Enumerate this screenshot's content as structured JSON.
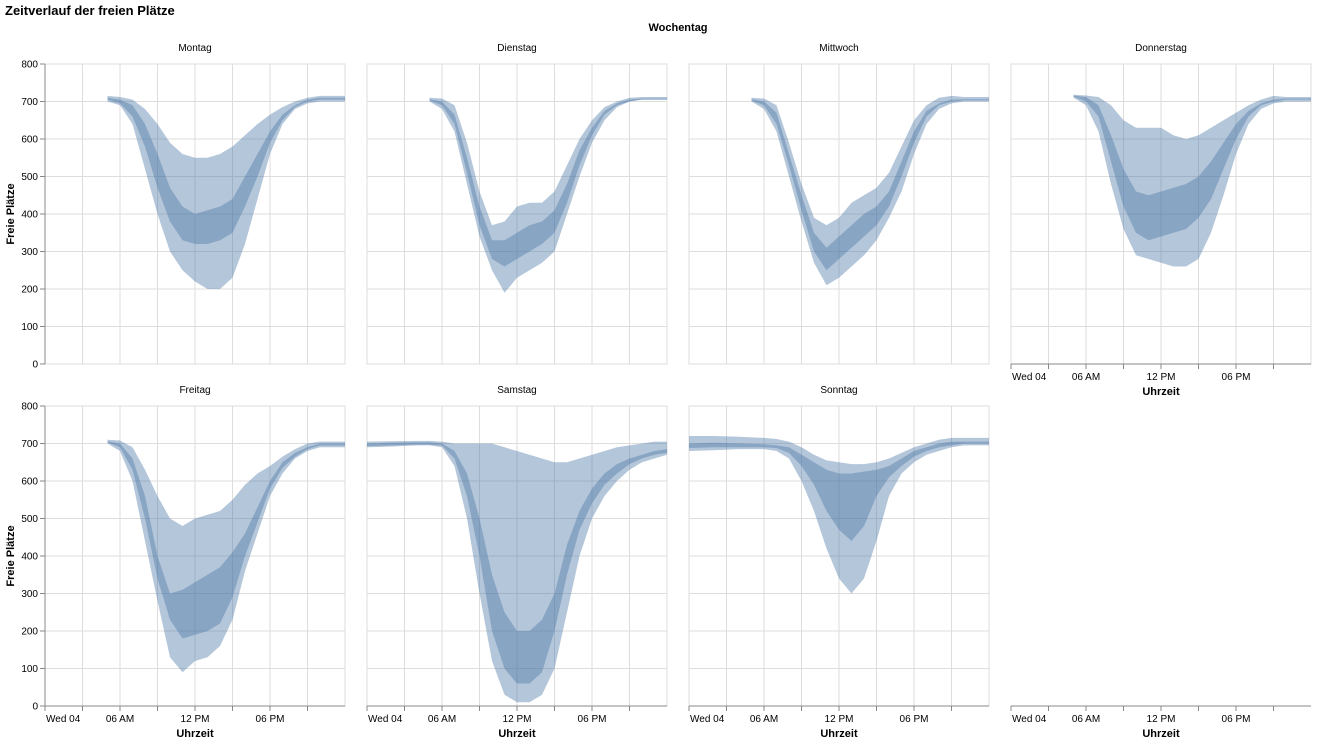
{
  "chart_data": {
    "type": "area",
    "title": "Zeitverlauf der freien Plätze",
    "facet_header": "Wochentag",
    "xlabel": "Uhrzeit",
    "ylabel": "Freie Plätze",
    "ylim": [
      0,
      800
    ],
    "y_ticks": [
      0,
      100,
      200,
      300,
      400,
      500,
      600,
      700,
      800
    ],
    "x_range_hours": [
      0,
      24
    ],
    "x_ticks": [
      {
        "hour": 0,
        "label": "Wed 04"
      },
      {
        "hour": 3,
        "label": ""
      },
      {
        "hour": 6,
        "label": "06 AM"
      },
      {
        "hour": 9,
        "label": ""
      },
      {
        "hour": 12,
        "label": "12 PM"
      },
      {
        "hour": 15,
        "label": ""
      },
      {
        "hour": 18,
        "label": "06 PM"
      },
      {
        "hour": 21,
        "label": ""
      }
    ],
    "grid": true,
    "colors": {
      "band": "#4c78a8",
      "grid": "#dddddd",
      "axis": "#888888"
    },
    "panels": [
      {
        "name": "Montag",
        "x": [
          5,
          6,
          7,
          8,
          9,
          10,
          11,
          12,
          13,
          14,
          15,
          16,
          17,
          18,
          19,
          20,
          21,
          22,
          23,
          24
        ],
        "min": [
          700,
          690,
          640,
          520,
          400,
          300,
          250,
          220,
          200,
          200,
          230,
          320,
          440,
          560,
          640,
          680,
          695,
          700,
          700,
          700
        ],
        "q1": [
          705,
          695,
          660,
          580,
          470,
          380,
          330,
          320,
          320,
          330,
          350,
          420,
          500,
          590,
          650,
          685,
          700,
          705,
          705,
          705
        ],
        "q3": [
          710,
          705,
          690,
          640,
          560,
          470,
          420,
          400,
          410,
          420,
          440,
          500,
          560,
          620,
          665,
          690,
          705,
          710,
          710,
          710
        ],
        "max": [
          715,
          712,
          705,
          680,
          640,
          590,
          560,
          550,
          550,
          560,
          580,
          610,
          640,
          665,
          685,
          700,
          710,
          715,
          715,
          715
        ]
      },
      {
        "name": "Dienstag",
        "x": [
          5,
          6,
          7,
          8,
          9,
          10,
          11,
          12,
          13,
          14,
          15,
          16,
          17,
          18,
          19,
          20,
          21,
          22,
          23,
          24
        ],
        "min": [
          700,
          680,
          620,
          480,
          340,
          250,
          190,
          230,
          250,
          270,
          300,
          400,
          500,
          590,
          650,
          685,
          700,
          705,
          705,
          705
        ],
        "q1": [
          703,
          690,
          640,
          510,
          370,
          280,
          260,
          280,
          300,
          320,
          350,
          430,
          530,
          610,
          665,
          690,
          700,
          705,
          705,
          705
        ],
        "q3": [
          706,
          700,
          665,
          550,
          420,
          330,
          330,
          350,
          370,
          380,
          410,
          480,
          570,
          630,
          675,
          695,
          705,
          708,
          708,
          708
        ],
        "max": [
          710,
          708,
          690,
          590,
          460,
          370,
          380,
          420,
          430,
          430,
          460,
          530,
          600,
          650,
          685,
          700,
          710,
          712,
          712,
          712
        ]
      },
      {
        "name": "Mittwoch",
        "x": [
          5,
          6,
          7,
          8,
          9,
          10,
          11,
          12,
          13,
          14,
          15,
          16,
          17,
          18,
          19,
          20,
          21,
          22,
          23,
          24
        ],
        "min": [
          700,
          680,
          620,
          500,
          380,
          270,
          210,
          230,
          260,
          290,
          330,
          390,
          460,
          560,
          640,
          680,
          695,
          700,
          700,
          700
        ],
        "q1": [
          703,
          690,
          640,
          530,
          410,
          300,
          250,
          280,
          310,
          340,
          370,
          420,
          500,
          590,
          660,
          690,
          700,
          703,
          703,
          703
        ],
        "q3": [
          706,
          700,
          670,
          560,
          450,
          350,
          310,
          340,
          370,
          400,
          420,
          460,
          540,
          620,
          675,
          695,
          705,
          706,
          706,
          706
        ],
        "max": [
          710,
          708,
          690,
          590,
          480,
          390,
          370,
          390,
          430,
          450,
          470,
          510,
          580,
          650,
          690,
          710,
          715,
          712,
          712,
          712
        ]
      },
      {
        "name": "Donnerstag",
        "x": [
          5,
          6,
          7,
          8,
          9,
          10,
          11,
          12,
          13,
          14,
          15,
          16,
          17,
          18,
          19,
          20,
          21,
          22,
          23,
          24
        ],
        "min": [
          710,
          690,
          620,
          480,
          360,
          290,
          280,
          270,
          260,
          260,
          280,
          350,
          450,
          560,
          640,
          680,
          695,
          700,
          700,
          700
        ],
        "q1": [
          713,
          700,
          660,
          540,
          420,
          350,
          330,
          340,
          350,
          360,
          390,
          440,
          520,
          600,
          660,
          690,
          700,
          705,
          705,
          705
        ],
        "q3": [
          716,
          712,
          690,
          610,
          520,
          460,
          450,
          460,
          470,
          480,
          500,
          540,
          590,
          640,
          675,
          695,
          705,
          708,
          708,
          708
        ],
        "max": [
          718,
          716,
          712,
          690,
          650,
          630,
          630,
          630,
          610,
          600,
          610,
          630,
          650,
          670,
          690,
          705,
          715,
          712,
          712,
          712
        ]
      },
      {
        "name": "Freitag",
        "x": [
          5,
          6,
          7,
          8,
          9,
          10,
          11,
          12,
          13,
          14,
          15,
          16,
          17,
          18,
          19,
          20,
          21,
          22,
          23,
          24
        ],
        "min": [
          700,
          680,
          600,
          440,
          280,
          130,
          90,
          120,
          130,
          160,
          230,
          360,
          460,
          560,
          620,
          660,
          680,
          690,
          690,
          690
        ],
        "q1": [
          703,
          690,
          630,
          500,
          340,
          230,
          180,
          190,
          200,
          220,
          290,
          400,
          490,
          580,
          635,
          665,
          685,
          695,
          695,
          695
        ],
        "q3": [
          706,
          700,
          660,
          560,
          400,
          300,
          310,
          330,
          350,
          370,
          410,
          460,
          530,
          600,
          650,
          675,
          690,
          700,
          700,
          700
        ],
        "max": [
          710,
          708,
          690,
          630,
          560,
          500,
          480,
          500,
          510,
          520,
          550,
          590,
          620,
          640,
          665,
          685,
          700,
          705,
          705,
          705
        ]
      },
      {
        "name": "Samstag",
        "x": [
          0,
          2,
          4,
          5,
          6,
          7,
          8,
          9,
          10,
          11,
          12,
          13,
          14,
          15,
          16,
          17,
          18,
          19,
          20,
          21,
          22,
          23,
          24
        ],
        "min": [
          690,
          692,
          695,
          695,
          690,
          640,
          500,
          300,
          120,
          30,
          10,
          10,
          30,
          100,
          250,
          400,
          500,
          560,
          600,
          630,
          650,
          660,
          670
        ],
        "q1": [
          693,
          695,
          697,
          697,
          695,
          660,
          560,
          400,
          200,
          100,
          60,
          60,
          90,
          200,
          350,
          470,
          540,
          590,
          620,
          645,
          660,
          670,
          675
        ],
        "q3": [
          700,
          702,
          703,
          703,
          700,
          680,
          620,
          500,
          350,
          250,
          200,
          200,
          230,
          300,
          430,
          520,
          580,
          620,
          645,
          660,
          670,
          680,
          685
        ],
        "max": [
          705,
          706,
          707,
          707,
          705,
          700,
          700,
          700,
          700,
          690,
          680,
          670,
          660,
          650,
          650,
          660,
          670,
          680,
          690,
          695,
          700,
          705,
          705
        ]
      },
      {
        "name": "Sonntag",
        "x": [
          0,
          2,
          4,
          6,
          7,
          8,
          9,
          10,
          11,
          12,
          13,
          14,
          15,
          16,
          17,
          18,
          19,
          20,
          21,
          22,
          23,
          24
        ],
        "min": [
          680,
          682,
          685,
          685,
          680,
          660,
          600,
          520,
          420,
          340,
          300,
          340,
          440,
          560,
          620,
          650,
          670,
          680,
          690,
          695,
          695,
          695
        ],
        "q1": [
          688,
          690,
          690,
          690,
          688,
          675,
          640,
          590,
          520,
          470,
          440,
          480,
          560,
          610,
          640,
          665,
          680,
          690,
          695,
          700,
          700,
          700
        ],
        "q3": [
          700,
          702,
          700,
          698,
          695,
          690,
          670,
          650,
          630,
          620,
          620,
          625,
          630,
          640,
          660,
          680,
          690,
          700,
          705,
          705,
          705,
          705
        ],
        "max": [
          720,
          720,
          718,
          715,
          712,
          705,
          690,
          670,
          655,
          650,
          645,
          645,
          650,
          660,
          675,
          690,
          700,
          710,
          715,
          715,
          715,
          715
        ]
      },
      {
        "name": "",
        "x": [],
        "min": [],
        "q1": [],
        "q3": [],
        "max": []
      }
    ]
  }
}
